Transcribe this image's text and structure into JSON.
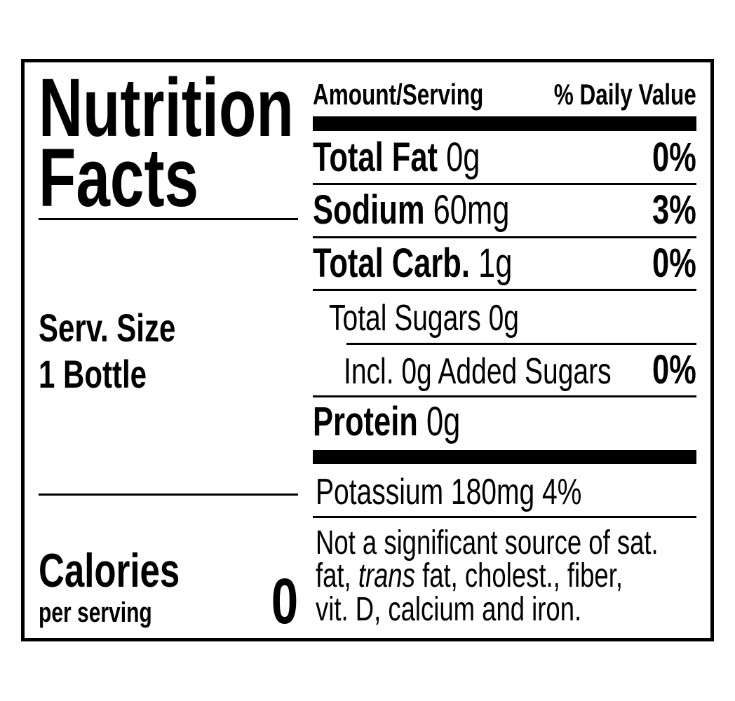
{
  "label": {
    "title_line1": "Nutrition",
    "title_line2": "Facts",
    "serving_size_label": "Serv. Size",
    "serving_size_value": "1 Bottle",
    "calories_label": "Calories",
    "calories_sub": "per serving",
    "calories_value": "0",
    "header_amount": "Amount/Serving",
    "header_dv": "% Daily Value",
    "nutrients": [
      {
        "name": "Total Fat",
        "amount": "0g",
        "dv": "0%"
      },
      {
        "name": "Sodium",
        "amount": "60mg",
        "dv": "3%"
      },
      {
        "name": "Total Carb.",
        "amount": "1g",
        "dv": "0%"
      },
      {
        "name": "Total Sugars 0g"
      },
      {
        "name": "Incl. 0g Added Sugars",
        "dv": "0%"
      },
      {
        "name": "Protein",
        "amount": "0g"
      }
    ],
    "potassium": "Potassium 180mg 4%",
    "footnote_line1": "Not a significant source of sat.",
    "footnote_line2a": "fat, ",
    "footnote_line2b": "trans",
    "footnote_line2c": " fat, cholest., fiber,",
    "footnote_line3": "vit. D, calcium and iron."
  }
}
